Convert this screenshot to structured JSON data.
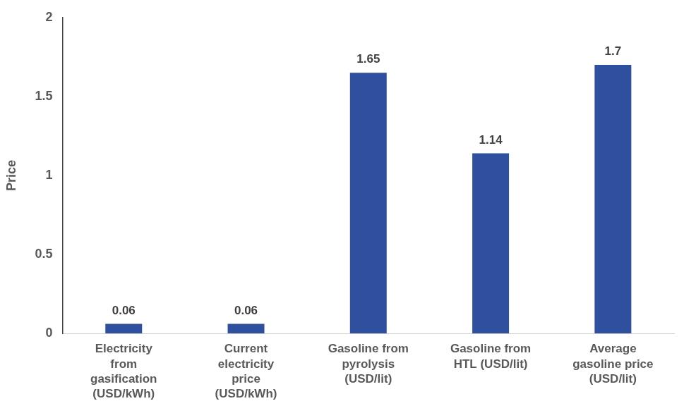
{
  "chart_data": {
    "type": "bar",
    "y_label": "Price",
    "categories": [
      [
        "Electricity",
        "from",
        "gasification",
        "(USD/kWh)"
      ],
      [
        "Current",
        "electricity",
        "price",
        "(USD/kWh)"
      ],
      [
        "Gasoline from",
        "pyrolysis",
        "(USD/lit)"
      ],
      [
        "Gasoline from",
        "HTL (USD/lit)"
      ],
      [
        "Average",
        "gasoline price",
        "(USD/lit)"
      ]
    ],
    "values": [
      0.06,
      0.06,
      1.65,
      1.14,
      1.7
    ],
    "color": "#2f4f9f",
    "ylim": [
      0,
      2
    ],
    "yticks": [
      0,
      0.5,
      1,
      1.5,
      2
    ],
    "grid": false,
    "data_labels": true
  }
}
